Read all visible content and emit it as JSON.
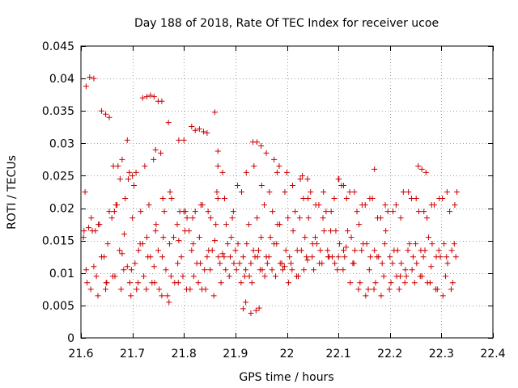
{
  "chart_data": {
    "type": "scatter",
    "title": "Day 188 of 2018, Rate Of TEC Index for receiver ucoe",
    "xlabel": "GPS time / hours",
    "ylabel": "ROTI / TECUs",
    "xlim": [
      21.6,
      22.4
    ],
    "ylim": [
      0,
      0.045
    ],
    "xticks": [
      21.6,
      21.7,
      21.8,
      21.9,
      22.0,
      22.1,
      22.2,
      22.3,
      22.4
    ],
    "xtick_labels": [
      "21.6",
      "21.7",
      "21.8",
      "21.9",
      "22",
      "22.1",
      "22.2",
      "22.3",
      "22.4"
    ],
    "yticks": [
      0,
      0.005,
      0.01,
      0.015,
      0.02,
      0.025,
      0.03,
      0.035,
      0.04,
      0.045
    ],
    "ytick_labels": [
      "0",
      "0.005",
      "0.01",
      "0.015",
      "0.02",
      "0.025",
      "0.03",
      "0.035",
      "0.04",
      "0.045"
    ],
    "grid": true,
    "marker": "+",
    "color": "#cc0000",
    "series": [
      {
        "name": "ROTI",
        "x": [
          21.605,
          21.615,
          21.625,
          21.64,
          21.65,
          21.665,
          21.68,
          21.69,
          21.7,
          21.715,
          21.73,
          21.745,
          21.76,
          21.775,
          21.79,
          21.8,
          21.815,
          21.83,
          21.845,
          21.86,
          21.875,
          21.89,
          21.905,
          21.92,
          21.935,
          21.95,
          21.965,
          21.98,
          21.995,
          22.01,
          22.025,
          22.04,
          22.055,
          22.07,
          22.085,
          22.1,
          22.115,
          22.13,
          22.145,
          22.16,
          22.175,
          22.19,
          22.205,
          22.22,
          22.235,
          22.25,
          22.265,
          22.28,
          22.295,
          22.31,
          22.325,
          21.608,
          21.622,
          21.636,
          21.652,
          21.668,
          21.684,
          21.698,
          21.712,
          21.728,
          21.742,
          21.758,
          21.772,
          21.788,
          21.802,
          21.818,
          21.832,
          21.848,
          21.862,
          21.878,
          21.892,
          21.908,
          21.922,
          21.938,
          21.952,
          21.968,
          21.982,
          21.998,
          22.012,
          22.028,
          22.042,
          22.058,
          22.072,
          22.088,
          22.102,
          22.118,
          22.132,
          22.148,
          22.162,
          22.178,
          22.192,
          22.208,
          22.222,
          22.238,
          22.252,
          22.268,
          22.282,
          22.298,
          22.312,
          22.328,
          21.61,
          21.628,
          21.645,
          21.66,
          21.675,
          21.692,
          21.705,
          21.72,
          21.735,
          21.75,
          21.765,
          21.78,
          21.795,
          21.81,
          21.825,
          21.84,
          21.855,
          21.87,
          21.885,
          21.9,
          21.915,
          21.93,
          21.945,
          21.96,
          21.975,
          21.99,
          22.005,
          22.02,
          22.035,
          22.05,
          22.065,
          22.08,
          22.095,
          22.11,
          22.125,
          22.14,
          22.155,
          22.17,
          22.185,
          22.2,
          22.215,
          22.23,
          22.245,
          22.26,
          22.275,
          22.29,
          22.305,
          22.32,
          21.612,
          21.63,
          21.648,
          21.662,
          21.678,
          21.695,
          21.708,
          21.722,
          21.738,
          21.752,
          21.768,
          21.782,
          21.798,
          21.812,
          21.828,
          21.842,
          21.858,
          21.872,
          21.888,
          21.902,
          21.918,
          21.932,
          21.948,
          21.962,
          21.978,
          21.992,
          22.008,
          22.022,
          22.038,
          22.052,
          22.068,
          22.082,
          22.098,
          22.112,
          22.128,
          22.142,
          22.158,
          22.172,
          22.188,
          22.202,
          22.218,
          22.232,
          22.248,
          22.262,
          22.278,
          22.292,
          22.308,
          22.322,
          21.606,
          21.62,
          21.634,
          21.655,
          21.67,
          21.686,
          21.7,
          21.716,
          21.732,
          21.746,
          21.762,
          21.776,
          21.792,
          21.806,
          21.822,
          21.836,
          21.852,
          21.866,
          21.882,
          21.896,
          21.912,
          21.926,
          21.942,
          21.956,
          21.972,
          21.986,
          22.002,
          22.016,
          22.032,
          22.046,
          22.062,
          22.076,
          22.092,
          22.106,
          22.122,
          22.136,
          22.152,
          22.166,
          22.182,
          22.196,
          22.212,
          22.226,
          22.242,
          22.256,
          22.272,
          22.286,
          22.302,
          22.316,
          22.33,
          21.61,
          21.617,
          21.625,
          21.64,
          21.648,
          21.655,
          21.72,
          21.728,
          21.735,
          21.742,
          21.75,
          21.757,
          21.77,
          21.815,
          21.822,
          21.83,
          21.838,
          21.845,
          21.86,
          21.866,
          21.934,
          21.942,
          21.95,
          21.915,
          21.92,
          21.93,
          21.94,
          21.946,
          21.672,
          21.68,
          21.69,
          21.707,
          21.745,
          21.755,
          21.79,
          21.8,
          21.866,
          21.875,
          21.96,
          21.975,
          21.985,
          22.0,
          22.03,
          22.04,
          22.1,
          22.11,
          22.17,
          22.255,
          22.262,
          22.27,
          21.663,
          21.676,
          21.694,
          21.703,
          21.724,
          21.741,
          21.759,
          21.773,
          21.787,
          21.803,
          21.817,
          21.833,
          21.847,
          21.864,
          21.879,
          21.894,
          21.904,
          21.921,
          21.936,
          21.951,
          21.966,
          21.981,
          21.996,
          22.011,
          22.026,
          22.041,
          22.056,
          22.071,
          22.086,
          22.101,
          22.116,
          22.131,
          22.146,
          22.161,
          22.176,
          22.191,
          22.206,
          22.221,
          22.236,
          22.251,
          22.266,
          22.281,
          22.296,
          22.311,
          22.326,
          21.619,
          21.633,
          21.649,
          21.666,
          21.683,
          21.697,
          21.711,
          21.727,
          21.743,
          21.757,
          21.771,
          21.789,
          21.805,
          21.819,
          21.835,
          21.851,
          21.867,
          21.881,
          21.897,
          21.911,
          21.927,
          21.943,
          21.957,
          21.971,
          21.987,
          22.003,
          22.019,
          22.033,
          22.049,
          22.063,
          22.079,
          22.093,
          22.109,
          22.123,
          22.139,
          22.153,
          22.169,
          22.183,
          22.199,
          22.213,
          22.229,
          22.243,
          22.259,
          22.273,
          22.289,
          22.303,
          22.319
        ],
        "y": [
          0.0155,
          0.017,
          0.011,
          0.0125,
          0.0085,
          0.0195,
          0.013,
          0.011,
          0.025,
          0.0145,
          0.0125,
          0.0165,
          0.0155,
          0.0095,
          0.015,
          0.0195,
          0.0135,
          0.0155,
          0.0125,
          0.015,
          0.013,
          0.0125,
          0.0145,
          0.0105,
          0.0135,
          0.0155,
          0.0125,
          0.0145,
          0.011,
          0.0105,
          0.0185,
          0.012,
          0.0155,
          0.0185,
          0.0165,
          0.0125,
          0.014,
          0.0115,
          0.0135,
          0.0105,
          0.0125,
          0.0145,
          0.0115,
          0.0095,
          0.0135,
          0.0145,
          0.0125,
          0.011,
          0.0135,
          0.0125,
          0.0145,
          0.0225,
          0.0165,
          0.0175,
          0.0145,
          0.0205,
          0.016,
          0.0105,
          0.0135,
          0.0155,
          0.011,
          0.0125,
          0.0145,
          0.0115,
          0.0165,
          0.0145,
          0.0115,
          0.0135,
          0.0175,
          0.0125,
          0.0155,
          0.0115,
          0.0145,
          0.0125,
          0.0105,
          0.0155,
          0.0175,
          0.0135,
          0.0165,
          0.0135,
          0.0185,
          0.0145,
          0.0165,
          0.0125,
          0.0145,
          0.0165,
          0.0135,
          0.0145,
          0.0125,
          0.0125,
          0.0165,
          0.0135,
          0.0115,
          0.0145,
          0.0115,
          0.0135,
          0.0145,
          0.0125,
          0.0115,
          0.0125,
          0.0105,
          0.0165,
          0.0125,
          0.0185,
          0.0135,
          0.0245,
          0.0115,
          0.0145,
          0.0125,
          0.0135,
          0.0105,
          0.0155,
          0.0125,
          0.0165,
          0.0115,
          0.0105,
          0.0135,
          0.0115,
          0.0145,
          0.0135,
          0.0125,
          0.0115,
          0.0135,
          0.0125,
          0.0145,
          0.0115,
          0.0125,
          0.0135,
          0.0155,
          0.0145,
          0.0135,
          0.0125,
          0.0165,
          0.0135,
          0.0155,
          0.0175,
          0.0145,
          0.0135,
          0.0115,
          0.0125,
          0.0135,
          0.0105,
          0.0125,
          0.0135,
          0.0155,
          0.0125,
          0.0145,
          0.0135,
          0.0085,
          0.0095,
          0.0075,
          0.0095,
          0.0075,
          0.0085,
          0.0075,
          0.0095,
          0.0085,
          0.0075,
          0.0065,
          0.0085,
          0.0095,
          0.0075,
          0.0085,
          0.0075,
          0.0065,
          0.0085,
          0.0095,
          0.0105,
          0.0095,
          0.0085,
          0.0105,
          0.0115,
          0.0095,
          0.0105,
          0.0115,
          0.0095,
          0.0125,
          0.0105,
          0.0115,
          0.0125,
          0.0105,
          0.0125,
          0.0115,
          0.0085,
          0.0075,
          0.0085,
          0.0095,
          0.0085,
          0.0075,
          0.0095,
          0.0085,
          0.0095,
          0.0085,
          0.0075,
          0.0095,
          0.0085,
          0.0165,
          0.0185,
          0.0175,
          0.0195,
          0.0205,
          0.0215,
          0.0185,
          0.0195,
          0.0205,
          0.0175,
          0.0195,
          0.0215,
          0.0195,
          0.0185,
          0.0195,
          0.0205,
          0.0185,
          0.0215,
          0.0175,
          0.0195,
          0.0225,
          0.0175,
          0.0185,
          0.0205,
          0.0195,
          0.0175,
          0.0185,
          0.0195,
          0.0215,
          0.0225,
          0.0205,
          0.0195,
          0.0215,
          0.0235,
          0.0225,
          0.0195,
          0.0205,
          0.0215,
          0.0185,
          0.0195,
          0.0205,
          0.0225,
          0.0215,
          0.0195,
          0.0185,
          0.0205,
          0.0215,
          0.0195,
          0.0225,
          0.0388,
          0.0402,
          0.04,
          0.035,
          0.0345,
          0.034,
          0.037,
          0.0372,
          0.0374,
          0.0372,
          0.0365,
          0.0365,
          0.0332,
          0.0326,
          0.032,
          0.0322,
          0.0318,
          0.0316,
          0.0348,
          0.0288,
          0.0302,
          0.0302,
          0.0296,
          0.0045,
          0.0055,
          0.0038,
          0.0042,
          0.0046,
          0.0265,
          0.0275,
          0.0305,
          0.0255,
          0.029,
          0.0285,
          0.0305,
          0.0305,
          0.0265,
          0.0255,
          0.0285,
          0.0275,
          0.0265,
          0.0255,
          0.025,
          0.0245,
          0.0245,
          0.0235,
          0.026,
          0.0265,
          0.026,
          0.0255,
          0.0265,
          0.0245,
          0.0255,
          0.0235,
          0.0265,
          0.0275,
          0.0215,
          0.0225,
          0.0175,
          0.0195,
          0.0185,
          0.0205,
          0.0195,
          0.0225,
          0.0215,
          0.0185,
          0.0235,
          0.0255,
          0.0265,
          0.0235,
          0.0225,
          0.0255,
          0.0225,
          0.0235,
          0.0245,
          0.0215,
          0.0205,
          0.0225,
          0.0195,
          0.0245,
          0.0215,
          0.0225,
          0.0205,
          0.0215,
          0.0185,
          0.0205,
          0.0195,
          0.0185,
          0.0225,
          0.0215,
          0.0195,
          0.0205,
          0.0215,
          0.0225,
          0.0205,
          0.0075,
          0.0065,
          0.0085,
          0.0095,
          0.0105,
          0.0065,
          0.0085,
          0.0075,
          0.0085,
          0.0065,
          0.0055,
          0.0085,
          0.0075,
          0.0095,
          0.0075,
          0.0105,
          0.0125,
          0.0105,
          0.0115,
          0.0085,
          0.0095,
          0.0125,
          0.0095,
          0.0105,
          0.0115,
          0.0085,
          0.0095,
          0.0105,
          0.0125,
          0.0115,
          0.0135,
          0.0115,
          0.0105,
          0.0085,
          0.0075,
          0.0065,
          0.0075,
          0.0065,
          0.0075,
          0.0095,
          0.0085,
          0.0105,
          0.0095,
          0.0085,
          0.0075,
          0.0065,
          0.0075
        ]
      }
    ]
  }
}
